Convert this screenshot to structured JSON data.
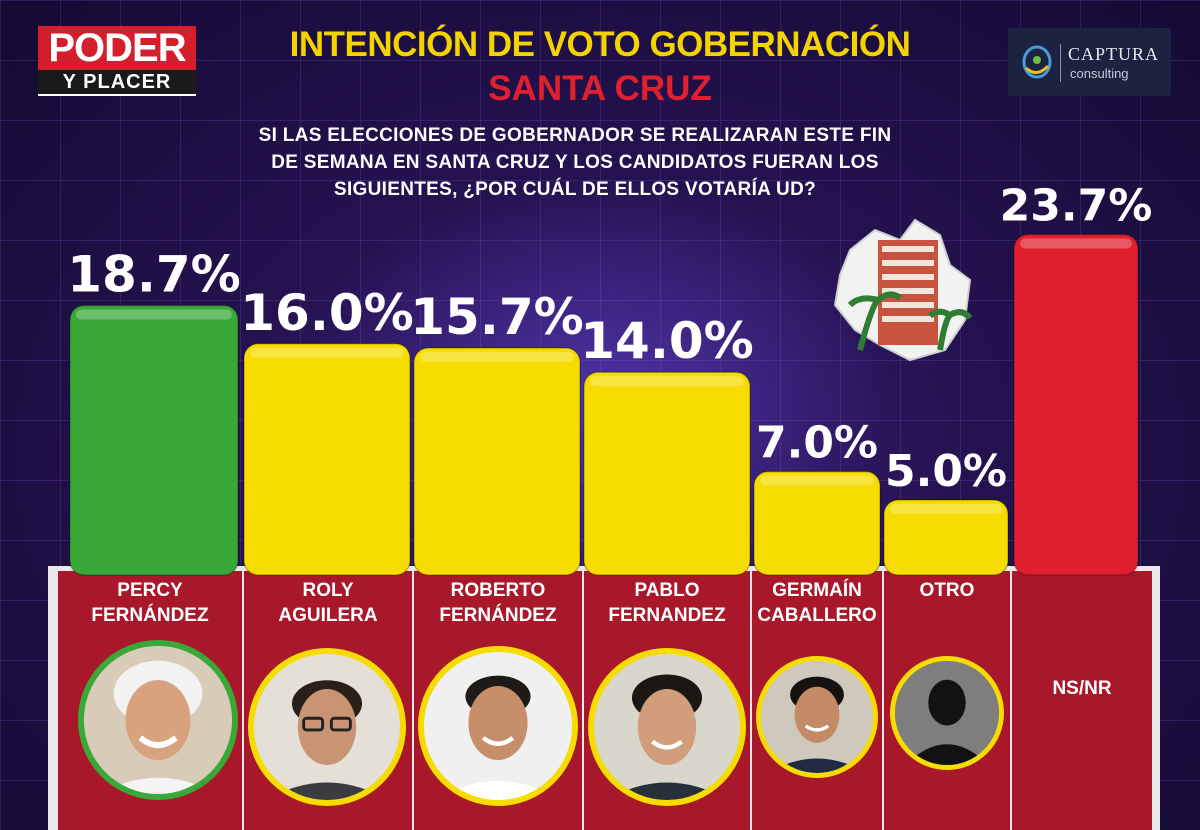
{
  "header": {
    "logo_left_top": "PODER",
    "logo_left_bottom": "Y PLACER",
    "title_line1": "INTENCIÓN DE VOTO GOBERNACIÓN",
    "title_line2": "SANTA CRUZ",
    "logo_right_name": "CAPTURA",
    "logo_right_sub": "consulting",
    "question": "SI LAS ELECCIONES DE GOBERNADOR SE REALIZARAN ESTE FIN DE SEMANA EN SANTA CRUZ Y LOS CANDIDATOS FUERAN LOS SIGUIENTES, ¿POR CUÁL DE ELLOS VOTARÍA UD?"
  },
  "colors": {
    "green": "#3aa838",
    "yellow": "#f6dc00",
    "red": "#e0202e",
    "cell_red": "#a8182a",
    "title_yellow": "#f4d400"
  },
  "chart_data": {
    "type": "bar",
    "categories": [
      "PERCY FERNÁNDEZ",
      "ROLY AGUILERA",
      "ROBERTO FERNÁNDEZ",
      "PABLO FERNANDEZ",
      "GERMAÍN CABALLERO",
      "OTRO",
      "NS/NR"
    ],
    "values": [
      18.7,
      16.0,
      15.7,
      14.0,
      7.0,
      5.0,
      23.7
    ],
    "value_labels": [
      "18.7%",
      "16.0%",
      "15.7%",
      "14.0%",
      "7.0%",
      "5.0%",
      "23.7%"
    ],
    "bar_colors": [
      "#3aa838",
      "#f6dc00",
      "#f6dc00",
      "#f6dc00",
      "#f6dc00",
      "#f6dc00",
      "#e0202e"
    ],
    "ylim": [
      0,
      27
    ]
  },
  "candidates": [
    {
      "line1": "PERCY",
      "line2": "FERNÁNDEZ",
      "ring": "#3aa838",
      "photo": "elderly-man-portrait"
    },
    {
      "line1": "ROLY",
      "line2": "AGUILERA",
      "ring": "#f6dc00",
      "photo": "man-glasses-portrait"
    },
    {
      "line1": "ROBERTO",
      "line2": "FERNÁNDEZ",
      "ring": "#f6dc00",
      "photo": "man-smiling-portrait"
    },
    {
      "line1": "PABLO",
      "line2": "FERNANDEZ",
      "ring": "#f6dc00",
      "photo": "young-man-portrait"
    },
    {
      "line1": "GERMAÍN",
      "line2": "CABALLERO",
      "ring": "#f6dc00",
      "photo": "man-suit-portrait"
    },
    {
      "line1": "OTRO",
      "line2": "",
      "ring": "#f6dc00",
      "photo": "silhouette-icon"
    }
  ],
  "nsnr_label": "NS/NR"
}
